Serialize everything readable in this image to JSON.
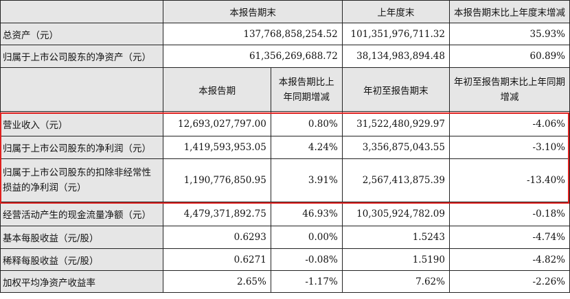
{
  "top_headers": [
    "本报告期末",
    "上年度末",
    "本报告期末比上年度末增减"
  ],
  "top_rows": [
    {
      "label": "总资产（元）",
      "values": [
        "137,768,858,254.52",
        "101,351,976,711.32",
        "35.93%"
      ]
    },
    {
      "label": "归属于上市公司股东的净资产（元）",
      "values": [
        "61,356,269,688.72",
        "38,134,983,894.48",
        "60.89%"
      ]
    }
  ],
  "mid_headers": [
    "本报告期",
    "本报告期比上年同期增减",
    "年初至报告期末",
    "年初至报告期末比上年同期增减"
  ],
  "rows": [
    {
      "label": "营业收入（元）",
      "values": [
        "12,693,027,797.00",
        "0.80%",
        "31,522,480,929.97",
        "-4.06%"
      ]
    },
    {
      "label": "归属于上市公司股东的净利润（元）",
      "values": [
        "1,419,593,953.05",
        "4.24%",
        "3,356,875,043.55",
        "-3.10%"
      ]
    },
    {
      "label": "归属于上市公司股东的扣除非经常性损益的净利润（元）",
      "values": [
        "1,190,776,850.95",
        "3.91%",
        "2,567,413,875.39",
        "-13.40%"
      ]
    },
    {
      "label": "经营活动产生的现金流量净额（元）",
      "values": [
        "4,479,371,892.75",
        "46.93%",
        "10,305,924,782.09",
        "-0.18%"
      ]
    },
    {
      "label": "基本每股收益（元/股）",
      "values": [
        "0.6293",
        "0.00%",
        "1.5243",
        "-4.74%"
      ]
    },
    {
      "label": "稀释每股收益（元/股）",
      "values": [
        "0.6271",
        "-0.08%",
        "1.5190",
        "-4.82%"
      ]
    },
    {
      "label": "加权平均净资产收益率",
      "values": [
        "2.65%",
        "-1.17%",
        "7.62%",
        "-2.26%"
      ]
    }
  ]
}
